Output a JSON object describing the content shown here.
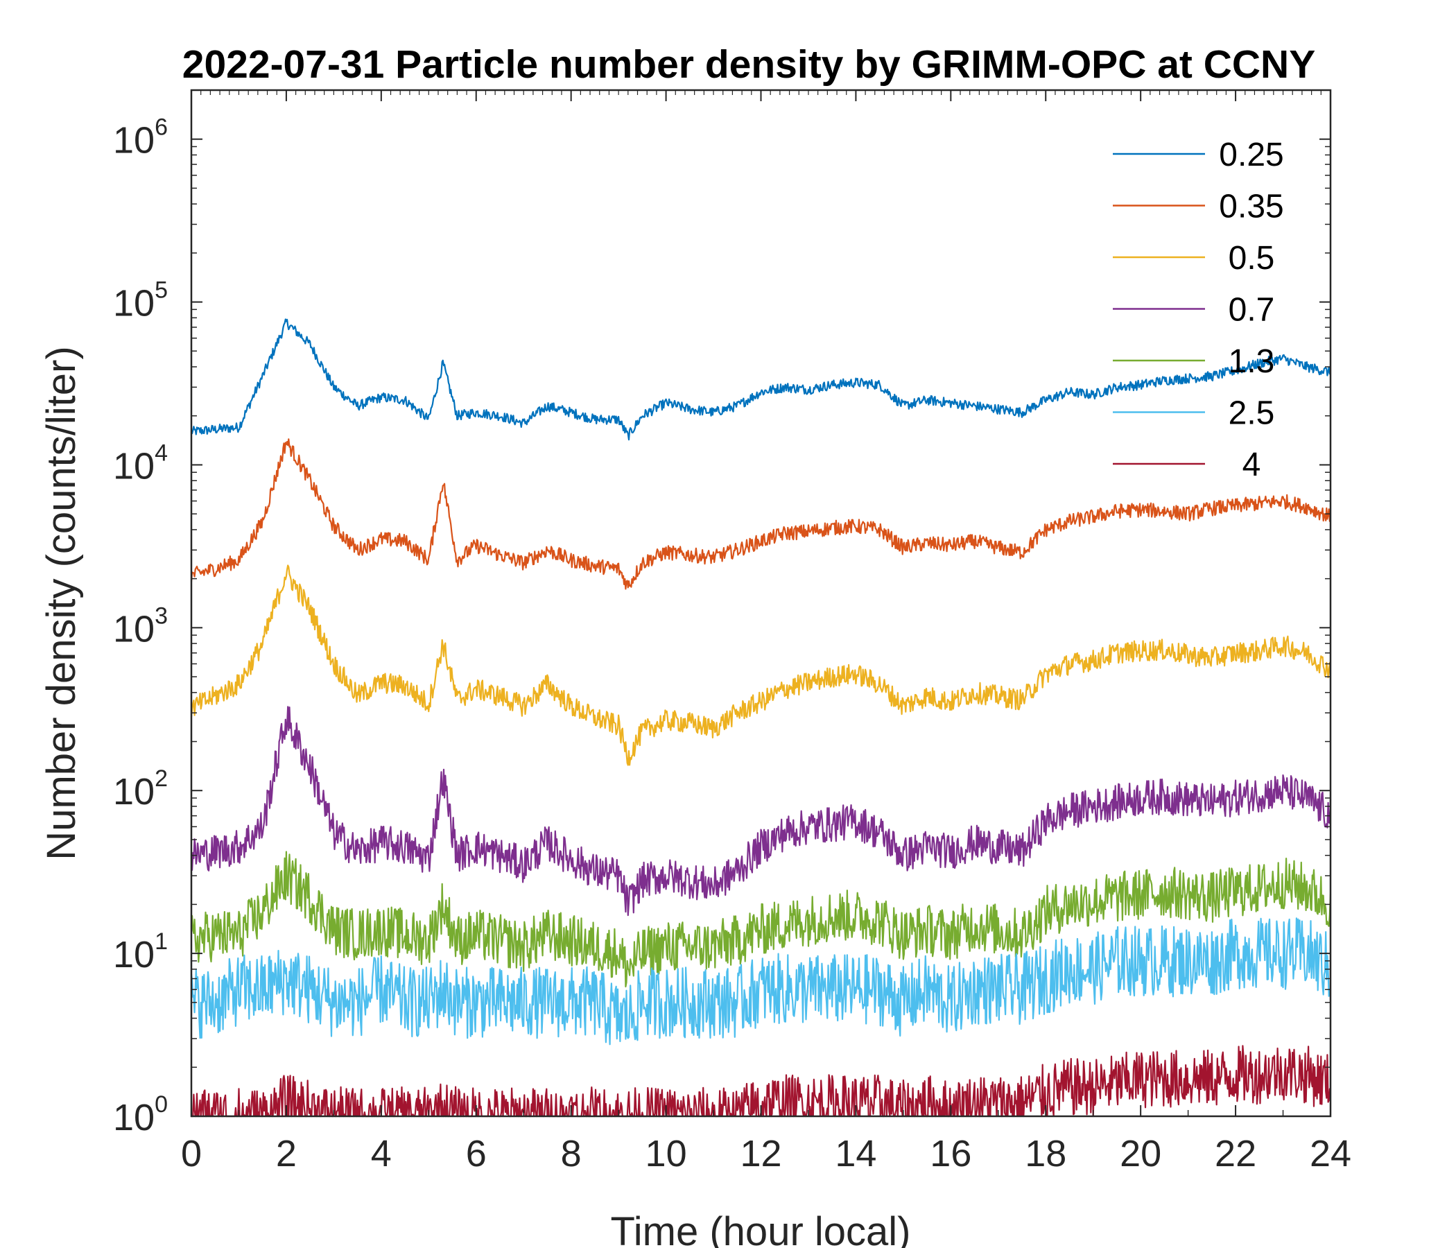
{
  "chart_data": {
    "type": "line",
    "title": "2022-07-31 Particle number density by GRIMM-OPC at CCNY",
    "xlabel": "Time (hour local)",
    "ylabel": "Number density (counts/liter)",
    "xlim": [
      0,
      24
    ],
    "ylim": [
      1,
      2000000
    ],
    "yscale": "log",
    "xticks": [
      "0",
      "2",
      "4",
      "6",
      "8",
      "10",
      "12",
      "14",
      "16",
      "18",
      "20",
      "22",
      "24"
    ],
    "yticks": [
      {
        "base": "10",
        "exp": "0",
        "value": 1
      },
      {
        "base": "10",
        "exp": "1",
        "value": 10
      },
      {
        "base": "10",
        "exp": "2",
        "value": 100
      },
      {
        "base": "10",
        "exp": "3",
        "value": 1000
      },
      {
        "base": "10",
        "exp": "4",
        "value": 10000
      },
      {
        "base": "10",
        "exp": "5",
        "value": 100000
      },
      {
        "base": "10",
        "exp": "6",
        "value": 1000000
      }
    ],
    "legend_position": "top-right",
    "x": [
      0,
      0.5,
      1,
      1.5,
      2,
      2.5,
      3,
      3.5,
      4,
      4.5,
      5,
      5.3,
      5.6,
      6,
      6.5,
      7,
      7.5,
      8,
      8.5,
      9,
      9.2,
      9.5,
      10,
      10.5,
      11,
      11.5,
      12,
      12.5,
      13,
      13.5,
      14,
      14.5,
      15,
      15.5,
      16,
      16.5,
      17,
      17.5,
      18,
      18.5,
      19,
      19.5,
      20,
      20.5,
      21,
      21.5,
      22,
      22.5,
      23,
      23.5,
      24
    ],
    "series": [
      {
        "name": "0.25",
        "color": "#0072BD",
        "values": [
          16000,
          16500,
          17000,
          35000,
          75000,
          55000,
          30000,
          23000,
          26000,
          25000,
          19000,
          42000,
          20000,
          21000,
          20000,
          18000,
          23000,
          21000,
          19000,
          19000,
          15000,
          20000,
          24000,
          22000,
          21000,
          23000,
          28000,
          30000,
          29000,
          31000,
          32000,
          31000,
          23000,
          25000,
          24000,
          23000,
          22000,
          21000,
          25000,
          28000,
          27000,
          30000,
          31000,
          33000,
          34000,
          35000,
          38000,
          42000,
          45000,
          40000,
          37000
        ]
      },
      {
        "name": "0.35",
        "color": "#D95319",
        "values": [
          2100,
          2300,
          2600,
          4500,
          14000,
          8000,
          4200,
          3000,
          3500,
          3400,
          2600,
          8000,
          2600,
          3200,
          2800,
          2500,
          3000,
          2600,
          2400,
          2300,
          1800,
          2500,
          2900,
          2800,
          2700,
          3000,
          3400,
          3800,
          3900,
          4100,
          4200,
          4000,
          3100,
          3300,
          3200,
          3400,
          3100,
          2900,
          4000,
          4500,
          4800,
          5200,
          5300,
          5200,
          5000,
          5400,
          5600,
          5800,
          6000,
          5500,
          4800
        ]
      },
      {
        "name": "0.5",
        "color": "#EDB120",
        "values": [
          320,
          380,
          450,
          800,
          2200,
          1300,
          600,
          380,
          460,
          440,
          340,
          800,
          360,
          420,
          380,
          330,
          450,
          330,
          280,
          250,
          160,
          230,
          270,
          260,
          240,
          300,
          350,
          420,
          460,
          500,
          520,
          450,
          330,
          380,
          350,
          400,
          380,
          360,
          520,
          600,
          630,
          700,
          720,
          730,
          680,
          650,
          700,
          720,
          780,
          700,
          550
        ]
      },
      {
        "name": "0.7",
        "color": "#7E2F8E",
        "values": [
          40,
          42,
          45,
          60,
          280,
          140,
          55,
          42,
          48,
          45,
          38,
          120,
          40,
          45,
          40,
          35,
          48,
          38,
          32,
          30,
          20,
          28,
          30,
          28,
          26,
          32,
          45,
          55,
          60,
          62,
          65,
          55,
          40,
          45,
          42,
          48,
          45,
          42,
          65,
          75,
          80,
          85,
          90,
          92,
          88,
          85,
          90,
          95,
          100,
          90,
          70
        ]
      },
      {
        "name": "1.3",
        "color": "#77AC30",
        "values": [
          12,
          13,
          13,
          18,
          30,
          22,
          14,
          13,
          14,
          13,
          12,
          20,
          12,
          13,
          12,
          11,
          13,
          12,
          11,
          10,
          8,
          10,
          11,
          11,
          11,
          12,
          14,
          15,
          16,
          17,
          17,
          16,
          13,
          14,
          13,
          15,
          14,
          13,
          18,
          20,
          21,
          22,
          23,
          24,
          23,
          22,
          24,
          25,
          27,
          25,
          20
        ]
      },
      {
        "name": "2.5",
        "color": "#4DBEEE",
        "values": [
          5,
          5,
          6,
          6,
          7,
          6,
          5,
          5,
          6,
          5,
          5,
          6,
          5,
          5,
          5,
          5,
          5,
          5,
          5,
          4,
          4,
          5,
          5,
          5,
          5,
          5,
          6,
          6,
          6,
          6,
          6,
          6,
          5,
          6,
          5,
          6,
          6,
          6,
          7,
          8,
          8,
          9,
          9,
          9,
          9,
          9,
          10,
          10,
          10,
          10,
          8
        ]
      },
      {
        "name": "4",
        "color": "#A2142F",
        "values": [
          1,
          1,
          1,
          1,
          1.2,
          1.1,
          1,
          1,
          1,
          1,
          1,
          1.1,
          1,
          1,
          1,
          1,
          1,
          1,
          1,
          1,
          1,
          1,
          1,
          1,
          1,
          1,
          1.2,
          1.2,
          1.2,
          1.2,
          1.2,
          1.2,
          1.1,
          1.2,
          1.1,
          1.2,
          1.2,
          1.2,
          1.4,
          1.5,
          1.5,
          1.6,
          1.7,
          1.7,
          1.7,
          1.7,
          1.8,
          1.8,
          1.9,
          1.8,
          1.6
        ]
      }
    ]
  }
}
